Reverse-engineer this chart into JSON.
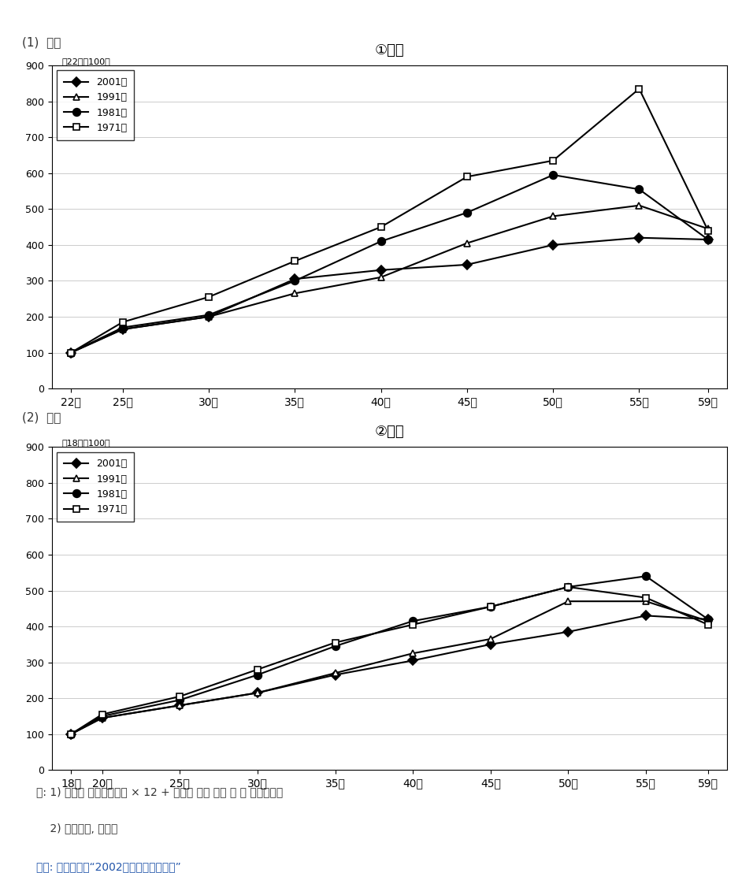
{
  "chart1": {
    "title": "①大卒",
    "subtitle": "（22歳＝100）",
    "x_labels": [
      "22歳",
      "25歳",
      "30歳",
      "35歳",
      "40歳",
      "45歳",
      "50歳",
      "55歳",
      "59歳"
    ],
    "x_values": [
      22,
      25,
      30,
      35,
      40,
      45,
      50,
      55,
      59
    ],
    "series": {
      "2001年": [
        100,
        165,
        200,
        305,
        330,
        345,
        400,
        420,
        415
      ],
      "1991年": [
        100,
        165,
        200,
        265,
        310,
        405,
        480,
        510,
        445
      ],
      "1981年": [
        100,
        170,
        205,
        300,
        410,
        490,
        595,
        555,
        415
      ],
      "1971年": [
        100,
        185,
        255,
        355,
        450,
        590,
        635,
        835,
        440
      ]
    },
    "ylim": [
      0,
      900
    ],
    "yticks": [
      0,
      100,
      200,
      300,
      400,
      500,
      600,
      700,
      800,
      900
    ]
  },
  "chart2": {
    "title": "②高卒",
    "subtitle": "（18歳＝100）",
    "x_labels": [
      "18歳",
      "20歳",
      "25歳",
      "30歳",
      "35歳",
      "40歳",
      "45歳",
      "50歳",
      "55歳",
      "59歳"
    ],
    "x_values": [
      18,
      20,
      25,
      30,
      35,
      40,
      45,
      50,
      55,
      59
    ],
    "series": {
      "2001年": [
        100,
        145,
        180,
        215,
        265,
        305,
        350,
        385,
        430,
        420
      ],
      "1991年": [
        100,
        145,
        180,
        215,
        270,
        325,
        365,
        470,
        470,
        415
      ],
      "1981年": [
        100,
        150,
        195,
        265,
        345,
        415,
        455,
        510,
        540,
        420
      ],
      "1971年": [
        100,
        155,
        205,
        280,
        355,
        405,
        455,
        510,
        480,
        405
      ]
    },
    "ylim": [
      0,
      900
    ],
    "yticks": [
      0,
      100,
      200,
      300,
      400,
      500,
      600,
      700,
      800,
      900
    ]
  },
  "legend_labels": [
    "2001年",
    "1991年",
    "1981年",
    "1971年"
  ],
  "line_styles": {
    "2001年": {
      "color": "black",
      "marker": "D",
      "markersize": 6,
      "linewidth": 1.5,
      "linestyle": "-",
      "fillstyle": "full"
    },
    "1991年": {
      "color": "black",
      "marker": "^",
      "markersize": 6,
      "linewidth": 1.5,
      "linestyle": "-",
      "fillstyle": "none"
    },
    "1981年": {
      "color": "black",
      "marker": "o",
      "markersize": 7,
      "linewidth": 1.5,
      "linestyle": "-",
      "fillstyle": "full"
    },
    "1971年": {
      "color": "black",
      "marker": "s",
      "markersize": 6,
      "linewidth": 1.5,
      "linestyle": "-",
      "fillstyle": "none"
    }
  },
  "note_line1": "주: 1) 임금은 소정내급여액 × 12 + 전년의 연간 상여 그 외 특별급여액",
  "note_line2": "    2) 기업규모, 산업계",
  "source": "자료: 厉生労働県“2002年版厉生労働白書”",
  "label1": "(1)  대졸",
  "label2": "(2)  고졸"
}
